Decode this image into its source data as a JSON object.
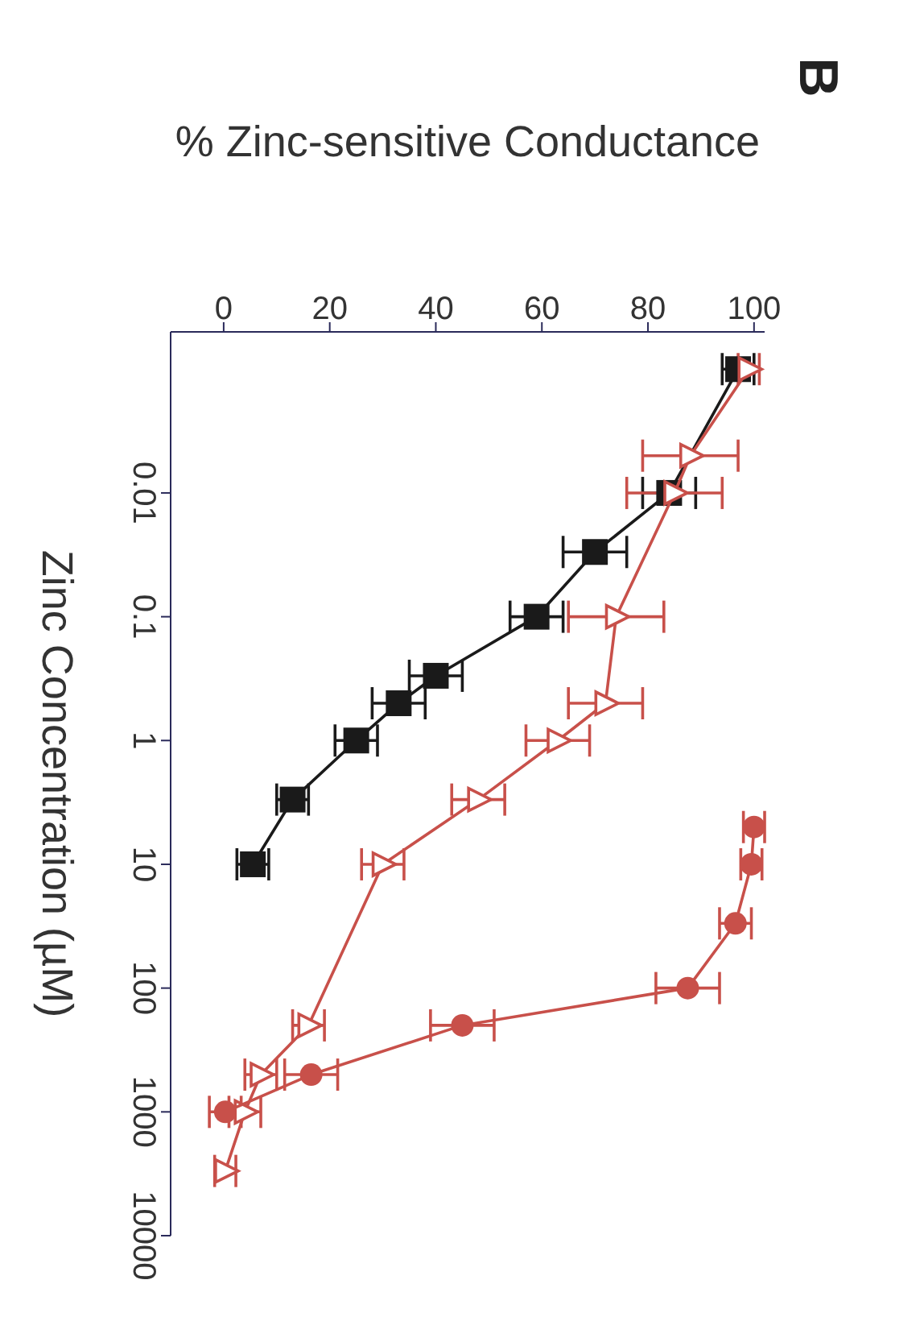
{
  "chart_data": {
    "type": "line",
    "title": "B",
    "xlabel": "% Zinc-sensitive Conductance",
    "ylabel": "Zinc Concentration (µM)",
    "log": "y",
    "xlim": [
      -10,
      102
    ],
    "xticks": [
      0,
      20,
      40,
      60,
      80,
      100
    ],
    "ylim": [
      10000,
      0.0005
    ],
    "yticks": [
      0.01,
      0.1,
      1,
      10,
      100,
      1000,
      10000
    ],
    "grid": false,
    "legend": false,
    "series": [
      {
        "color": "#1a1a1a",
        "marker": "square",
        "values": [
          0.001,
          0.01,
          0.03,
          0.1,
          0.3,
          0.5,
          1,
          3,
          10
        ],
        "x": [
          97,
          84,
          70,
          59,
          40,
          33,
          25,
          13,
          5.5
        ],
        "xerrors": [
          3,
          5,
          6,
          5,
          5,
          5,
          4,
          3,
          3
        ]
      },
      {
        "color": "#c8504a",
        "marker": "triangle",
        "values": [
          0.001,
          0.005,
          0.01,
          0.1,
          0.5,
          1,
          3,
          10,
          200,
          500,
          1000,
          3000
        ],
        "x": [
          99,
          88,
          85,
          74,
          72,
          63,
          48,
          30,
          16,
          7,
          4,
          0.3
        ],
        "xerrors": [
          2,
          9,
          9,
          9,
          7,
          6,
          5,
          4,
          3,
          3,
          3,
          2
        ]
      },
      {
        "color": "#c8504a",
        "marker": "circle",
        "values": [
          5,
          10,
          30,
          100,
          200,
          500,
          1000
        ],
        "x": [
          100,
          99.5,
          96.5,
          87.5,
          45,
          16.5,
          0.3
        ],
        "xerrors": [
          2,
          2,
          3,
          6,
          6,
          5,
          3
        ]
      }
    ]
  }
}
